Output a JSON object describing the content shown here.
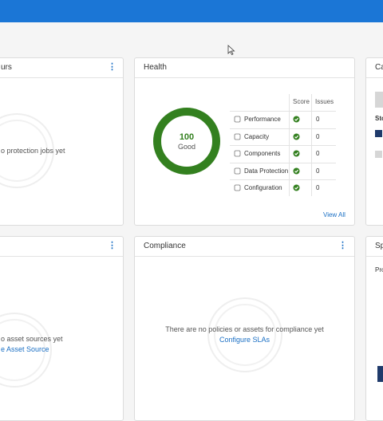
{
  "top_left_card": {
    "title": "urs",
    "empty_text": "o protection jobs yet"
  },
  "health": {
    "title": "Health",
    "score": "100",
    "status": "Good",
    "columns": [
      "Score",
      "Issues"
    ],
    "rows": [
      {
        "label": "Performance",
        "issues": 0
      },
      {
        "label": "Capacity",
        "issues": 0
      },
      {
        "label": "Components",
        "issues": 0
      },
      {
        "label": "Data Protection",
        "issues": 0
      },
      {
        "label": "Configuration",
        "issues": 0
      }
    ],
    "link": "View All"
  },
  "top_right_card": {
    "title": "Ca",
    "legend_heading": "Sto"
  },
  "bottom_left_card": {
    "empty_text": "o asset sources yet",
    "link": "e Asset Source"
  },
  "compliance": {
    "title": "Compliance",
    "empty_text": "There are no policies or assets for compliance yet",
    "link": "Configure SLAs"
  },
  "bottom_right_card": {
    "title": "Sp",
    "subtitle": "Pro"
  }
}
